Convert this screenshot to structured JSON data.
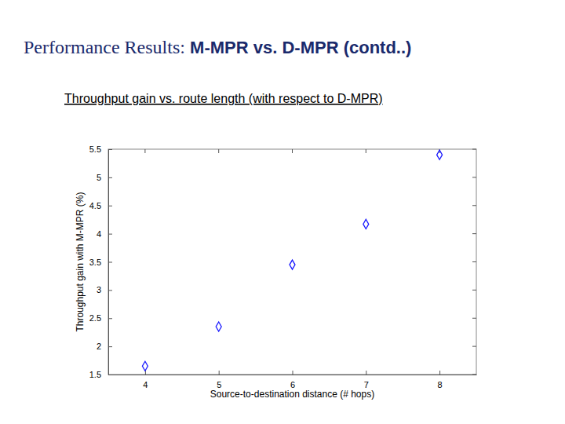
{
  "chart_data": {
    "type": "scatter",
    "title": "Performance Results: M-MPR vs. D-MPR (contd..)",
    "subtitle": "Throughput gain vs. route length (with respect to D-MPR)",
    "x_label": "Source-to-destination distance (# hops)",
    "y_label": "Throughput gain with M-MPR (%)",
    "x": [
      4,
      5,
      6,
      7,
      8
    ],
    "values": [
      1.65,
      2.35,
      3.45,
      4.17,
      5.4
    ],
    "color": "#1a1aff",
    "marker": "diamond",
    "xlim": [
      3.5,
      8.5
    ],
    "xticks": [
      4,
      5,
      6,
      7,
      8
    ],
    "ylim": [
      1.5,
      5.5
    ],
    "yticks": [
      1.5,
      2,
      2.5,
      3,
      3.5,
      4,
      4.5,
      5,
      5.5
    ],
    "grid": false
  }
}
